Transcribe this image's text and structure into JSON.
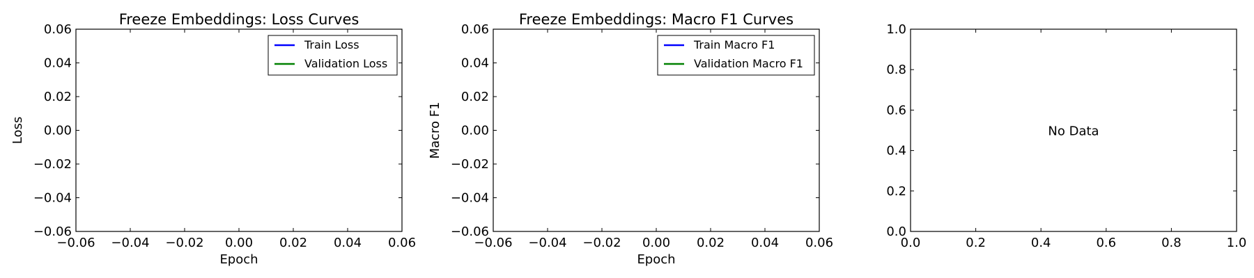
{
  "chart_data": [
    {
      "type": "line",
      "title": "Freeze Embeddings: Loss Curves",
      "xlabel": "Epoch",
      "ylabel": "Loss",
      "xlim": [
        -0.06,
        0.06
      ],
      "ylim": [
        -0.06,
        0.06
      ],
      "xticks": [
        "−0.06",
        "−0.04",
        "−0.02",
        "0.00",
        "0.02",
        "0.04",
        "0.06"
      ],
      "yticks": [
        "−0.06",
        "−0.04",
        "−0.02",
        "0.00",
        "0.02",
        "0.04",
        "0.06"
      ],
      "legend_position": "top-right",
      "series": [
        {
          "name": "Train Loss",
          "color": "#0000ff",
          "x": [],
          "y": []
        },
        {
          "name": "Validation Loss",
          "color": "#008000",
          "x": [],
          "y": []
        }
      ]
    },
    {
      "type": "line",
      "title": "Freeze Embeddings: Macro F1 Curves",
      "xlabel": "Epoch",
      "ylabel": "Macro F1",
      "xlim": [
        -0.06,
        0.06
      ],
      "ylim": [
        -0.06,
        0.06
      ],
      "xticks": [
        "−0.06",
        "−0.04",
        "−0.02",
        "0.00",
        "0.02",
        "0.04",
        "0.06"
      ],
      "yticks": [
        "−0.06",
        "−0.04",
        "−0.02",
        "0.00",
        "0.02",
        "0.04",
        "0.06"
      ],
      "legend_position": "top-right",
      "series": [
        {
          "name": "Train Macro F1",
          "color": "#0000ff",
          "x": [],
          "y": []
        },
        {
          "name": "Validation Macro F1",
          "color": "#008000",
          "x": [],
          "y": []
        }
      ]
    },
    {
      "type": "line",
      "title": "",
      "xlabel": "",
      "ylabel": "",
      "xlim": [
        0,
        1
      ],
      "ylim": [
        0,
        1
      ],
      "xticks": [
        "0.0",
        "0.2",
        "0.4",
        "0.6",
        "0.8",
        "1.0"
      ],
      "yticks": [
        "0.0",
        "0.2",
        "0.4",
        "0.6",
        "0.8",
        "1.0"
      ],
      "annotation": "No Data",
      "series": []
    }
  ]
}
